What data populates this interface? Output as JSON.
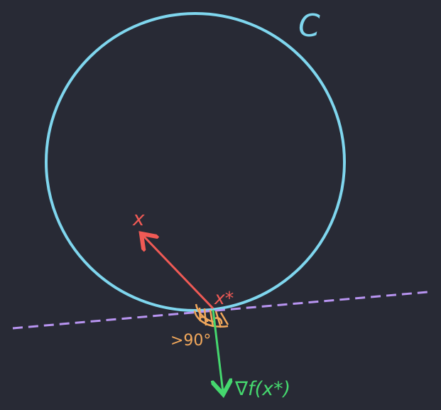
{
  "colors": {
    "background": "#282a35",
    "circle": "#7fd6ee",
    "red_vector": "#f05a55",
    "gradient": "#45d76e",
    "tangent_line": "#b894f1",
    "angle_mark": "#f2a85b"
  },
  "labels": {
    "set": "C",
    "point": "x",
    "optimum": "x*",
    "gradient": "∇f(x*)",
    "angle": ">90°"
  },
  "icons": {
    "angle_hatching": "angle-hatch-icon"
  }
}
